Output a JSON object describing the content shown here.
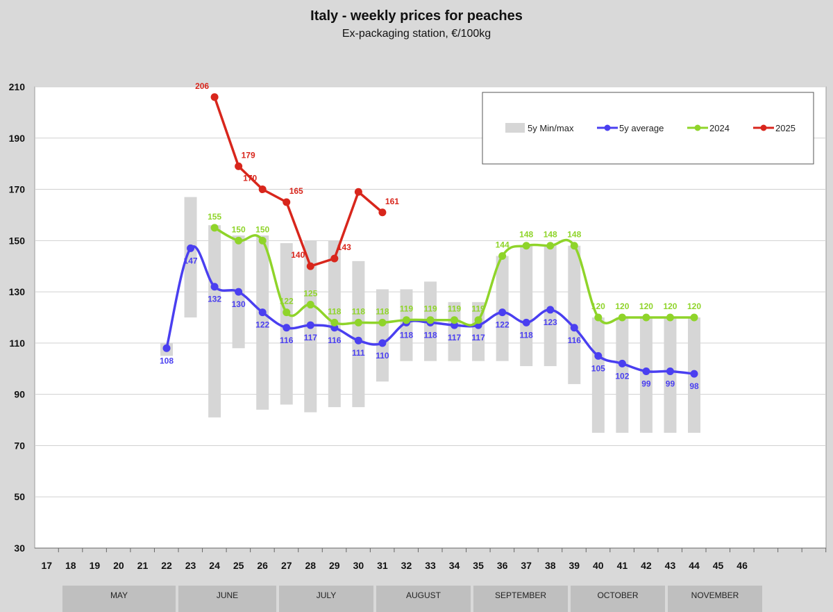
{
  "title": "Italy - weekly prices for peaches",
  "subtitle": "Ex-packaging station, €/100kg",
  "months": [
    "MAY",
    "JUNE",
    "JULY",
    "AUGUST",
    "SEPTEMBER",
    "OCTOBER",
    "NOVEMBER"
  ],
  "chart_data": {
    "type": "line",
    "title": "Italy - weekly prices for peaches",
    "subtitle": "Ex-packaging station, €/100kg",
    "xlabel": "",
    "ylabel": "",
    "x_ticks": [
      17,
      18,
      19,
      20,
      21,
      22,
      23,
      24,
      25,
      26,
      27,
      28,
      29,
      30,
      31,
      32,
      33,
      34,
      35,
      36,
      37,
      38,
      39,
      40,
      41,
      42,
      43,
      44,
      45,
      46
    ],
    "xlim": [
      16.5,
      49.5
    ],
    "ylim": [
      30,
      210
    ],
    "y_ticks": [
      30,
      50,
      70,
      90,
      110,
      130,
      150,
      170,
      190,
      210
    ],
    "grid": true,
    "legend_position": "top-right",
    "legend": [
      "5y Min/max",
      "5y average",
      "2024",
      "2025"
    ],
    "colors": {
      "minmax": "#d6d6d6",
      "avg": "#4a3ff0",
      "y2024": "#8fd42a",
      "y2025": "#d8261c"
    },
    "minmax": [
      {
        "week": 22,
        "min": 105,
        "max": 110
      },
      {
        "week": 23,
        "min": 120,
        "max": 167
      },
      {
        "week": 24,
        "min": 81,
        "max": 156
      },
      {
        "week": 25,
        "min": 108,
        "max": 152
      },
      {
        "week": 26,
        "min": 84,
        "max": 152
      },
      {
        "week": 27,
        "min": 86,
        "max": 149
      },
      {
        "week": 28,
        "min": 83,
        "max": 150
      },
      {
        "week": 29,
        "min": 85,
        "max": 150
      },
      {
        "week": 30,
        "min": 85,
        "max": 142
      },
      {
        "week": 31,
        "min": 95,
        "max": 131
      },
      {
        "week": 32,
        "min": 103,
        "max": 131
      },
      {
        "week": 33,
        "min": 103,
        "max": 134
      },
      {
        "week": 34,
        "min": 103,
        "max": 126
      },
      {
        "week": 35,
        "min": 103,
        "max": 126
      },
      {
        "week": 36,
        "min": 103,
        "max": 144
      },
      {
        "week": 37,
        "min": 101,
        "max": 148
      },
      {
        "week": 38,
        "min": 101,
        "max": 148
      },
      {
        "week": 39,
        "min": 94,
        "max": 148
      },
      {
        "week": 40,
        "min": 75,
        "max": 120
      },
      {
        "week": 41,
        "min": 75,
        "max": 120
      },
      {
        "week": 42,
        "min": 75,
        "max": 120
      },
      {
        "week": 43,
        "min": 75,
        "max": 120
      },
      {
        "week": 44,
        "min": 75,
        "max": 120
      }
    ],
    "series": [
      {
        "name": "5y average",
        "key": "avg",
        "weeks": [
          22,
          23,
          24,
          25,
          26,
          27,
          28,
          29,
          30,
          31,
          32,
          33,
          34,
          35,
          36,
          37,
          38,
          39,
          40,
          41,
          42,
          43,
          44
        ],
        "values": [
          108,
          147,
          132,
          130,
          122,
          116,
          117,
          116,
          111,
          110,
          118,
          118,
          117,
          117,
          122,
          118,
          123,
          116,
          105,
          102,
          99,
          99,
          98
        ]
      },
      {
        "name": "2024",
        "key": "y2024",
        "weeks": [
          24,
          25,
          26,
          27,
          28,
          29,
          30,
          31,
          32,
          33,
          34,
          35,
          36,
          37,
          38,
          39,
          40,
          41,
          42,
          43,
          44
        ],
        "values": [
          155,
          150,
          150,
          122,
          125,
          118,
          118,
          118,
          119,
          119,
          119,
          119,
          144,
          148,
          148,
          148,
          120,
          120,
          120,
          120,
          120
        ]
      },
      {
        "name": "2025",
        "key": "y2025",
        "weeks": [
          24,
          25,
          26,
          27,
          28,
          29,
          30,
          31
        ],
        "values": [
          206,
          179,
          170,
          165,
          140,
          143,
          169,
          161
        ],
        "labels": [
          "206",
          "179",
          "170",
          "165",
          "140",
          "143",
          "",
          "161"
        ]
      }
    ]
  }
}
